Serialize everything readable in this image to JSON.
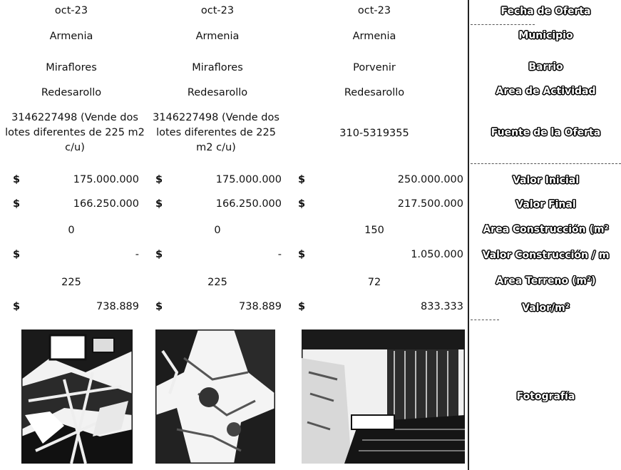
{
  "rows": {
    "fecha": {
      "label": "Fecha de Oferta",
      "values": [
        "oct-23",
        "oct-23",
        "oct-23"
      ]
    },
    "municipio": {
      "label": "Municipio",
      "values": [
        "Armenia",
        "Armenia",
        "Armenia"
      ]
    },
    "barrio": {
      "label": "Barrio",
      "values": [
        "Miraflores",
        "Miraflores",
        "Porvenir"
      ]
    },
    "area_actividad": {
      "label": "Área de Actividad",
      "values": [
        "Redesarollo",
        "Redesarollo",
        "Redesarollo"
      ]
    },
    "fuente": {
      "label": "Fuente de la Oferta",
      "values": [
        "3146227498 (Vende dos lotes diferentes de 225 m2 c/u)",
        "3146227498 (Vende dos lotes diferentes de 225 m2 c/u)",
        "310-5319355"
      ]
    },
    "valor_inicial": {
      "label": "Valor Inicial",
      "currency": "$",
      "values": [
        "175.000.000",
        "175.000.000",
        "250.000.000"
      ]
    },
    "valor_final": {
      "label": "Valor Final",
      "currency": "$",
      "values": [
        "166.250.000",
        "166.250.000",
        "217.500.000"
      ]
    },
    "area_construccion": {
      "label": "Área Construcción (m²",
      "values": [
        "0",
        "0",
        "150"
      ]
    },
    "valor_construccion": {
      "label": "Valor Construcción / m",
      "currency": "$",
      "values": [
        "-",
        "-",
        "1.050.000"
      ]
    },
    "area_terreno": {
      "label": "Área Terreno (m²)",
      "values": [
        "225",
        "225",
        "72"
      ]
    },
    "valor_m2": {
      "label": "Valor/m²",
      "currency": "$",
      "values": [
        "738.889",
        "738.889",
        "833.333"
      ]
    },
    "fotografia": {
      "label": "Fotografía"
    }
  }
}
